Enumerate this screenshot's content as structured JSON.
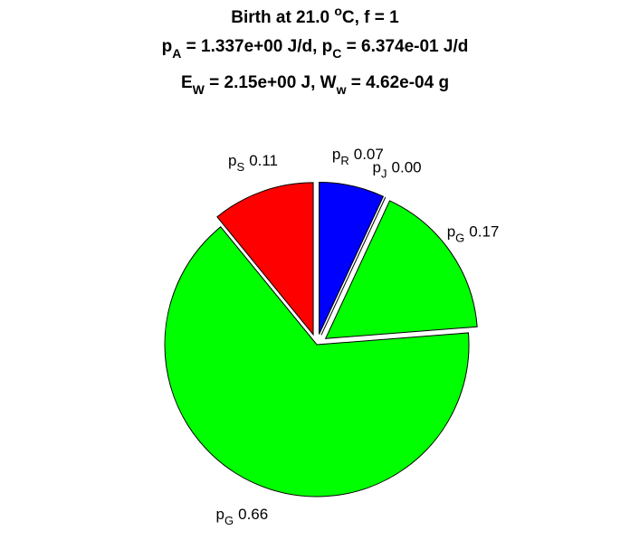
{
  "chart_data": {
    "type": "pie",
    "title_lines": [
      [
        {
          "text": "Birth at 21.0 "
        },
        {
          "text": "o",
          "script": "sup"
        },
        {
          "text": "C, f = 1"
        }
      ],
      [
        {
          "text": "p"
        },
        {
          "text": "A",
          "script": "sub"
        },
        {
          "text": " = 1.337e+00 J/d, p"
        },
        {
          "text": "C",
          "script": "sub"
        },
        {
          "text": " = 6.374e-01 J/d"
        }
      ],
      [
        {
          "text": "E"
        },
        {
          "text": "W",
          "script": "sub"
        },
        {
          "text": " = 2.15e+00 J, W"
        },
        {
          "text": "w",
          "script": "sub"
        },
        {
          "text": " = 4.62e-04 g"
        }
      ]
    ],
    "label_prefix": "p",
    "categories": [
      "R",
      "J",
      "G",
      "G",
      "S"
    ],
    "values": [
      0.07,
      0,
      0.17,
      0.66,
      0.11
    ],
    "value_labels": [
      "0.07",
      "0.00",
      "0.17",
      "0.66",
      "0.11"
    ],
    "colors": [
      "#0000ff",
      "#0000ff",
      "#00ff00",
      "#00ff00",
      "#ff0000"
    ],
    "explode": [
      true,
      true,
      true,
      false,
      true
    ]
  }
}
